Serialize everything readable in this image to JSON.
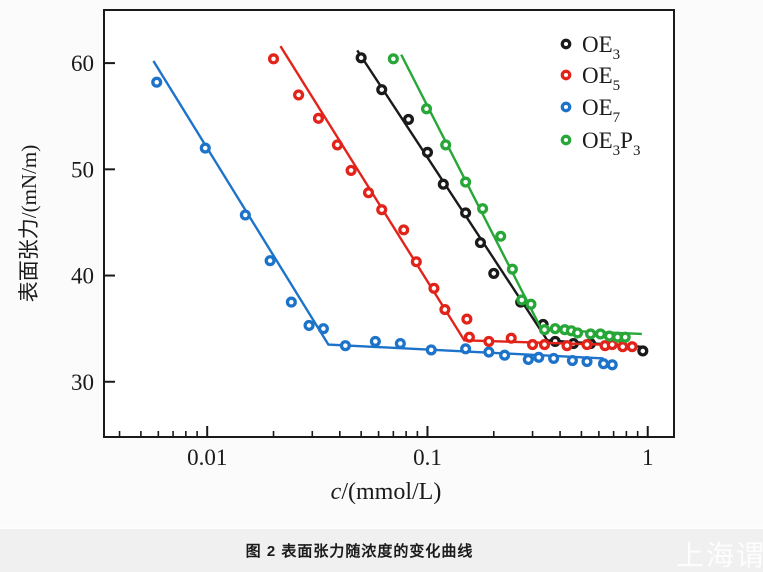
{
  "figure": {
    "caption": "图 2  表面张力随浓度的变化曲线",
    "watermark": "上海谓尔"
  },
  "colors": {
    "page_bg": "#fbfbfb",
    "caption_strip_bg": "#f0f0f0",
    "axis": "#1a1a1a",
    "watermark_color": "#ffffff"
  },
  "chart_data": {
    "type": "scatter",
    "title": "",
    "xlabel_parts": [
      {
        "t": "c",
        "italic": true
      },
      {
        "t": "/(mmol/L)"
      }
    ],
    "ylabel": "表面张力/(mN/m)",
    "x_axis": {
      "scale": "log",
      "min": 0.0034,
      "max": 1.316,
      "ticks": [
        {
          "v": 0.01,
          "label": "0.01"
        },
        {
          "v": 0.1,
          "label": "0.1"
        },
        {
          "v": 1,
          "label": "1"
        }
      ]
    },
    "y_axis": {
      "scale": "linear",
      "min": 24.8,
      "max": 65.0,
      "ticks": [
        {
          "v": 30,
          "label": "30"
        },
        {
          "v": 40,
          "label": "40"
        },
        {
          "v": 50,
          "label": "50"
        },
        {
          "v": 60,
          "label": "60"
        }
      ]
    },
    "legend": {
      "position": "top-right"
    },
    "series": [
      {
        "name": "OE3",
        "label_parts": [
          {
            "t": "OE"
          },
          {
            "sub": "3"
          }
        ],
        "color": "#1a1a1a",
        "z": 1,
        "points": [
          [
            0.05,
            60.5
          ],
          [
            0.062,
            57.5
          ],
          [
            0.082,
            54.7
          ],
          [
            0.1,
            51.6
          ],
          [
            0.118,
            48.6
          ],
          [
            0.149,
            45.9
          ],
          [
            0.174,
            43.1
          ],
          [
            0.2,
            40.2
          ],
          [
            0.265,
            37.5
          ],
          [
            0.335,
            35.4
          ],
          [
            0.38,
            33.8
          ],
          [
            0.46,
            33.6
          ],
          [
            0.55,
            33.6
          ],
          [
            0.95,
            32.9
          ]
        ],
        "fit_line": [
          [
            0.048,
            61.2
          ],
          [
            0.35,
            33.9
          ],
          [
            0.93,
            33.3
          ]
        ]
      },
      {
        "name": "OE5",
        "label_parts": [
          {
            "t": "OE"
          },
          {
            "sub": "5"
          }
        ],
        "color": "#e2231a",
        "z": 2,
        "points": [
          [
            0.02,
            60.4
          ],
          [
            0.026,
            57.0
          ],
          [
            0.032,
            54.8
          ],
          [
            0.039,
            52.3
          ],
          [
            0.045,
            49.9
          ],
          [
            0.054,
            47.8
          ],
          [
            0.062,
            46.2
          ],
          [
            0.078,
            44.3
          ],
          [
            0.089,
            41.3
          ],
          [
            0.107,
            38.8
          ],
          [
            0.12,
            36.8
          ],
          [
            0.151,
            35.9
          ],
          [
            0.155,
            34.2
          ],
          [
            0.19,
            33.8
          ],
          [
            0.24,
            34.1
          ],
          [
            0.3,
            33.5
          ],
          [
            0.34,
            33.5
          ],
          [
            0.43,
            33.4
          ],
          [
            0.53,
            33.5
          ],
          [
            0.64,
            33.4
          ],
          [
            0.69,
            33.5
          ],
          [
            0.77,
            33.3
          ],
          [
            0.85,
            33.3
          ]
        ],
        "fit_line": [
          [
            0.0215,
            61.6
          ],
          [
            0.147,
            33.9
          ],
          [
            0.89,
            33.4
          ]
        ]
      },
      {
        "name": "OE7",
        "label_parts": [
          {
            "t": "OE"
          },
          {
            "sub": "7"
          }
        ],
        "color": "#1d73c9",
        "z": 0,
        "points": [
          [
            0.0059,
            58.2
          ],
          [
            0.0098,
            52.0
          ],
          [
            0.0149,
            45.7
          ],
          [
            0.0193,
            41.4
          ],
          [
            0.0241,
            37.5
          ],
          [
            0.029,
            35.3
          ],
          [
            0.0337,
            35.0
          ],
          [
            0.0424,
            33.4
          ],
          [
            0.058,
            33.8
          ],
          [
            0.0753,
            33.6
          ],
          [
            0.104,
            33.0
          ],
          [
            0.149,
            33.1
          ],
          [
            0.19,
            32.8
          ],
          [
            0.224,
            32.5
          ],
          [
            0.287,
            32.1
          ],
          [
            0.32,
            32.3
          ],
          [
            0.374,
            32.2
          ],
          [
            0.455,
            32.0
          ],
          [
            0.53,
            31.9
          ],
          [
            0.63,
            31.7
          ],
          [
            0.69,
            31.6
          ]
        ],
        "fit_line": [
          [
            0.0057,
            60.2
          ],
          [
            0.0355,
            33.5
          ],
          [
            0.63,
            32.2
          ]
        ]
      },
      {
        "name": "OE3P3",
        "label_parts": [
          {
            "t": "OE"
          },
          {
            "sub": "3"
          },
          {
            "t": "P"
          },
          {
            "sub": "3"
          }
        ],
        "color": "#26a737",
        "z": 3,
        "points": [
          [
            0.07,
            60.4
          ],
          [
            0.099,
            55.7
          ],
          [
            0.121,
            52.3
          ],
          [
            0.149,
            48.8
          ],
          [
            0.178,
            46.3
          ],
          [
            0.215,
            43.7
          ],
          [
            0.243,
            40.6
          ],
          [
            0.268,
            37.7
          ],
          [
            0.295,
            37.3
          ],
          [
            0.34,
            34.9
          ],
          [
            0.38,
            35.0
          ],
          [
            0.42,
            34.9
          ],
          [
            0.45,
            34.8
          ],
          [
            0.48,
            34.6
          ],
          [
            0.55,
            34.5
          ],
          [
            0.61,
            34.5
          ],
          [
            0.67,
            34.3
          ],
          [
            0.73,
            34.2
          ],
          [
            0.79,
            34.2
          ]
        ],
        "fit_line": [
          [
            0.076,
            60.8
          ],
          [
            0.33,
            34.9
          ],
          [
            0.94,
            34.5
          ]
        ]
      }
    ]
  }
}
